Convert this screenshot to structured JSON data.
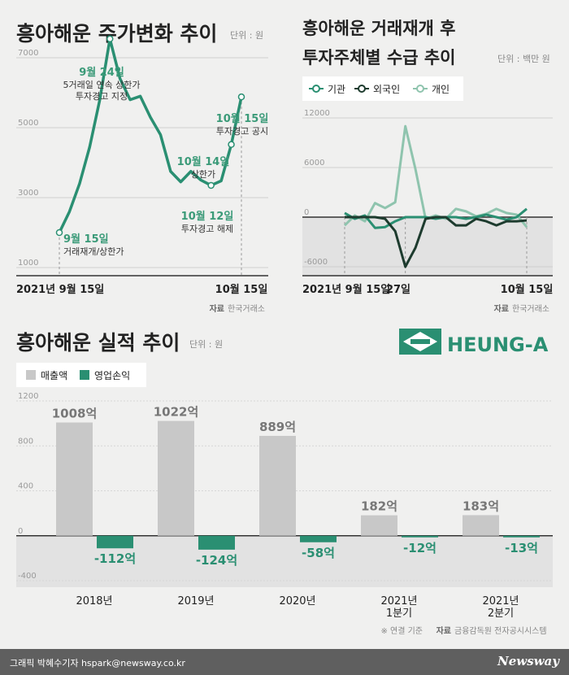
{
  "colors": {
    "primary": "#2a8f72",
    "primary_label": "#3a9a78",
    "dark": "#1d3b2e",
    "light": "#8fc4ae",
    "bar_gray": "#c8c8c8",
    "neg_band": "#e2e2e2",
    "text": "#222222",
    "subtle": "#888888"
  },
  "chart1": {
    "title": "흥아해운 주가변화 추이",
    "unit": "단위 : 원",
    "ylim": [
      1000,
      7000
    ],
    "yticks": [
      "7000",
      "5000",
      "3000",
      "1000"
    ],
    "x_start": "2021년 9월 15일",
    "x_end": "10월 15일",
    "source_label": "자료",
    "source": "한국거래소",
    "annotations": [
      {
        "id": "a-sep24",
        "date": "9월 24일",
        "text": [
          "5거래일 연속 상한가",
          "투자경고 지정"
        ]
      },
      {
        "id": "a-sep15",
        "date": "9월 15일",
        "text": [
          "거래재개/상한가"
        ]
      },
      {
        "id": "a-oct12",
        "date": "10월 12일",
        "text": [
          "투자경고 해제"
        ]
      },
      {
        "id": "a-oct14",
        "date": "10월 14일",
        "text": [
          "상한가"
        ]
      },
      {
        "id": "a-oct15",
        "date": "10월 15일",
        "text": [
          "투자경고 공시"
        ]
      }
    ]
  },
  "chart2": {
    "title1": "흥아해운 거래재개 후",
    "title2": "투자주체별 수급 추이",
    "unit": "단위 : 백만 원",
    "legend": [
      "기관",
      "외국인",
      "개인"
    ],
    "ylim": [
      -6000,
      12000
    ],
    "yticks": [
      "12000",
      "6000",
      "0",
      "-6000"
    ],
    "x_start": "2021년 9월 15일",
    "x_mid": "27일",
    "x_end": "10월 15일",
    "source_label": "자료",
    "source": "한국거래소"
  },
  "chart3": {
    "title": "흥아해운 실적 추이",
    "unit": "단위 : 원",
    "brand": "HEUNG-A",
    "legend": [
      "매출액",
      "영업손익"
    ],
    "yticks": [
      "1200",
      "800",
      "400",
      "0",
      "-400"
    ],
    "categories": [
      [
        "2018년"
      ],
      [
        "2019년"
      ],
      [
        "2020년"
      ],
      [
        "2021년",
        "1분기"
      ],
      [
        "2021년",
        "2분기"
      ]
    ],
    "revenue_labels": [
      "1008억",
      "1022억",
      "889억",
      "182억",
      "183억"
    ],
    "profit_labels": [
      "-112억",
      "-124억",
      "-58억",
      "-12억",
      "-13억"
    ],
    "note": "※ 연결 기준",
    "source_label": "자료",
    "source": "금융감독원 전자공시시스템"
  },
  "chart_data": [
    {
      "type": "line",
      "title": "흥아해운 주가변화 추이",
      "x": [
        "2021-09-15",
        "2021-09-16",
        "2021-09-17",
        "2021-09-22",
        "2021-09-23",
        "2021-09-24",
        "2021-09-27",
        "2021-09-28",
        "2021-09-29",
        "2021-09-30",
        "2021-10-01",
        "2021-10-05",
        "2021-10-06",
        "2021-10-07",
        "2021-10-08",
        "2021-10-12",
        "2021-10-13",
        "2021-10-14",
        "2021-10-15"
      ],
      "series": [
        {
          "values": [
            2000,
            2600,
            3400,
            4450,
            5800,
            7540,
            6400,
            5800,
            5900,
            5300,
            4800,
            3750,
            3450,
            3750,
            3500,
            3350,
            3480,
            4520,
            5880
          ]
        }
      ],
      "ylim": [
        1000,
        7000
      ],
      "xlabel": "",
      "ylabel": ""
    },
    {
      "type": "line",
      "title": "흥아해운 거래재개 후 투자주체별 수급 추이",
      "x": [
        "2021-09-15",
        "2021-09-16",
        "2021-09-17",
        "2021-09-22",
        "2021-09-23",
        "2021-09-24",
        "2021-09-27",
        "2021-09-28",
        "2021-09-29",
        "2021-09-30",
        "2021-10-01",
        "2021-10-05",
        "2021-10-06",
        "2021-10-07",
        "2021-10-08",
        "2021-10-12",
        "2021-10-13",
        "2021-10-14",
        "2021-10-15"
      ],
      "series": [
        {
          "name": "기관",
          "values": [
            500,
            -200,
            200,
            -1300,
            -1200,
            -500,
            0,
            0,
            0,
            -200,
            0,
            0,
            -200,
            0,
            300,
            0,
            -300,
            0,
            1000
          ]
        },
        {
          "name": "외국인",
          "values": [
            0,
            0,
            0,
            0,
            -200,
            -1700,
            -6000,
            -3700,
            -200,
            0,
            0,
            -1000,
            -1000,
            -200,
            -500,
            -1000,
            -500,
            -500,
            -400
          ]
        },
        {
          "name": "개인",
          "values": [
            -1000,
            200,
            -500,
            1700,
            1100,
            1800,
            11000,
            5800,
            -200,
            200,
            -200,
            1000,
            700,
            100,
            400,
            1000,
            500,
            300,
            -1200
          ]
        }
      ],
      "ylim": [
        -6000,
        12000
      ],
      "xlabel": "",
      "ylabel": ""
    },
    {
      "type": "bar",
      "title": "흥아해운 실적 추이",
      "categories": [
        "2018년",
        "2019년",
        "2020년",
        "2021년 1분기",
        "2021년 2분기"
      ],
      "series": [
        {
          "name": "매출액",
          "values": [
            1008,
            1022,
            889,
            182,
            183
          ]
        },
        {
          "name": "영업손익",
          "values": [
            -112,
            -124,
            -58,
            -12,
            -13
          ]
        }
      ],
      "ylim": [
        -400,
        1200
      ],
      "xlabel": "",
      "ylabel": ""
    }
  ],
  "footer": {
    "credit": "그래픽 박혜수기자 hspark@newsway.co.kr",
    "brand": "Newsway"
  }
}
